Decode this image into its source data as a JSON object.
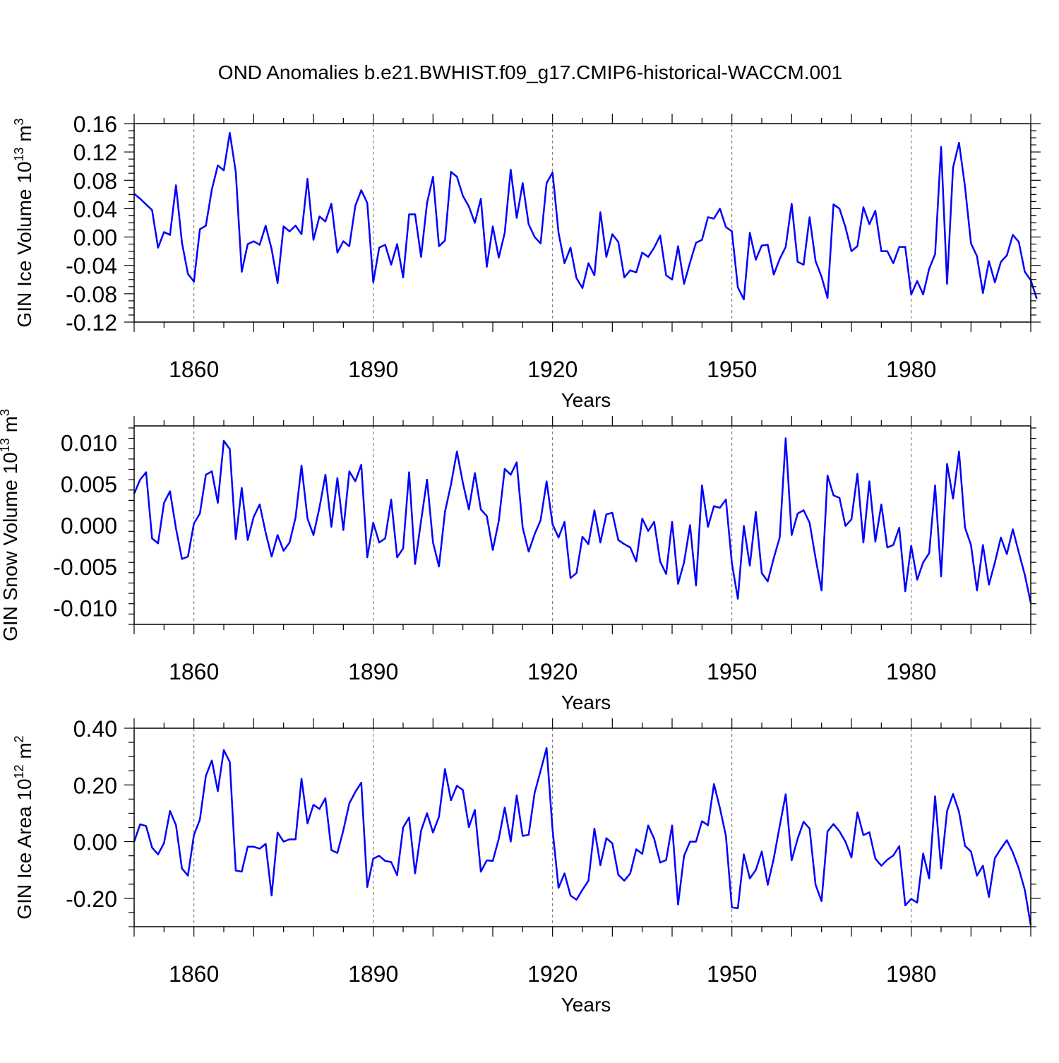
{
  "title": "OND Anomalies b.e21.BWHIST.f09_g17.CMIP6-historical-WACCM.001",
  "line_color": "#0000ff",
  "chart_data": [
    {
      "type": "line",
      "ylabel": {
        "main": "GIN Ice Volume 10",
        "exp": "13",
        "unit": " m",
        "unit_exp": "3"
      },
      "xlabel": "Years",
      "xlim": [
        1850,
        2000
      ],
      "ylim": [
        -0.12,
        0.16
      ],
      "xticks": [
        1860,
        1890,
        1920,
        1950,
        1980
      ],
      "yticks": [
        -0.12,
        -0.08,
        -0.04,
        0.0,
        0.04,
        0.08,
        0.12,
        0.16
      ],
      "ytick_labels": [
        "-0.12",
        "-0.08",
        "-0.04",
        "0.00",
        "0.04",
        "0.08",
        "0.12",
        "0.16"
      ],
      "x_start": 1850,
      "series": [
        {
          "name": "GIN Ice Volume",
          "values": [
            0.061,
            0.054,
            0.046,
            0.038,
            -0.015,
            0.007,
            0.003,
            0.073,
            -0.008,
            -0.052,
            -0.063,
            0.011,
            0.016,
            0.067,
            0.101,
            0.094,
            0.147,
            0.092,
            -0.049,
            -0.01,
            -0.006,
            -0.011,
            0.016,
            -0.017,
            -0.065,
            0.015,
            0.008,
            0.016,
            0.004,
            0.082,
            -0.004,
            0.029,
            0.022,
            0.047,
            -0.022,
            -0.006,
            -0.013,
            0.044,
            0.066,
            0.048,
            -0.064,
            -0.015,
            -0.011,
            -0.039,
            -0.01,
            -0.057,
            0.032,
            0.032,
            -0.028,
            0.048,
            0.085,
            -0.013,
            -0.005,
            0.092,
            0.085,
            0.058,
            0.043,
            0.02,
            0.054,
            -0.042,
            0.015,
            -0.029,
            0.006,
            0.095,
            0.027,
            0.076,
            0.018,
            0.0,
            -0.009,
            0.076,
            0.091,
            0.006,
            -0.037,
            -0.015,
            -0.058,
            -0.072,
            -0.037,
            -0.054,
            0.035,
            -0.028,
            0.004,
            -0.007,
            -0.057,
            -0.047,
            -0.05,
            -0.022,
            -0.028,
            -0.015,
            0.002,
            -0.054,
            -0.06,
            -0.013,
            -0.066,
            -0.036,
            -0.008,
            -0.004,
            0.028,
            0.026,
            0.04,
            0.014,
            0.008,
            -0.071,
            -0.088,
            0.006,
            -0.032,
            -0.012,
            -0.011,
            -0.053,
            -0.031,
            -0.014,
            0.047,
            -0.035,
            -0.039,
            0.028,
            -0.034,
            -0.056,
            -0.086,
            0.046,
            0.04,
            0.014,
            -0.02,
            -0.013,
            0.042,
            0.018,
            0.037,
            -0.02,
            -0.02,
            -0.037,
            -0.014,
            -0.014,
            -0.081,
            -0.062,
            -0.081,
            -0.045,
            -0.024,
            0.127,
            -0.066,
            0.098,
            0.133,
            0.071,
            -0.009,
            -0.027,
            -0.079,
            -0.034,
            -0.064,
            -0.035,
            -0.026,
            0.003,
            -0.007,
            -0.049,
            -0.061,
            -0.087
          ]
        }
      ]
    },
    {
      "type": "line",
      "ylabel": {
        "main": "GIN Snow Volume 10",
        "exp": "13",
        "unit": " m",
        "unit_exp": "3"
      },
      "xlabel": "Years",
      "xlim": [
        1850,
        2000
      ],
      "ylim": [
        -0.012,
        0.012
      ],
      "xticks": [
        1860,
        1890,
        1920,
        1950,
        1980
      ],
      "yticks": [
        -0.01,
        -0.005,
        0.0,
        0.005,
        0.01
      ],
      "ytick_labels": [
        "-0.010",
        "-0.005",
        "0.000",
        "0.005",
        "0.010"
      ],
      "x_start": 1850,
      "series": [
        {
          "name": "GIN Snow Volume",
          "values": [
            0.0038,
            0.0055,
            0.0064,
            -0.0016,
            -0.0022,
            0.0027,
            0.0041,
            -0.0004,
            -0.0041,
            -0.0038,
            0.0002,
            0.0014,
            0.0061,
            0.0065,
            0.0027,
            0.0102,
            0.0092,
            -0.0017,
            0.0045,
            -0.0018,
            0.001,
            0.0025,
            -0.0009,
            -0.0038,
            -0.0012,
            -0.0031,
            -0.0021,
            0.0009,
            0.0072,
            0.0008,
            -0.0012,
            0.0021,
            0.0061,
            -0.0002,
            0.0057,
            -0.0006,
            0.0065,
            0.0053,
            0.0073,
            -0.0039,
            0.0003,
            -0.0021,
            -0.0016,
            0.0031,
            -0.0039,
            -0.0028,
            0.0064,
            -0.0047,
            0.0005,
            0.0055,
            -0.0021,
            -0.005,
            0.0016,
            0.0049,
            0.0089,
            0.0051,
            0.0019,
            0.0063,
            0.0019,
            0.0011,
            -0.003,
            0.0005,
            0.0068,
            0.0061,
            0.0076,
            -0.0003,
            -0.0032,
            -0.0011,
            0.0006,
            0.0053,
            0.0001,
            -0.0015,
            0.0004,
            -0.0064,
            -0.0058,
            -0.0014,
            -0.0023,
            0.0018,
            -0.0021,
            0.0013,
            0.0015,
            -0.0018,
            -0.0023,
            -0.0027,
            -0.0044,
            0.0008,
            -0.0007,
            0.0004,
            -0.0044,
            -0.0059,
            0.0004,
            -0.0071,
            -0.0045,
            0.0,
            -0.0073,
            0.0048,
            -0.0002,
            0.0023,
            0.0021,
            0.0031,
            -0.0046,
            -0.0089,
            -0.0001,
            -0.0049,
            0.0016,
            -0.0058,
            -0.0068,
            -0.004,
            -0.0015,
            0.0105,
            -0.0012,
            0.0014,
            0.0018,
            0.0003,
            -0.004,
            -0.0079,
            0.006,
            0.0036,
            0.0033,
            -0.0001,
            0.0007,
            0.0062,
            -0.0021,
            0.0053,
            -0.002,
            0.0025,
            -0.0027,
            -0.0024,
            -0.0003,
            -0.008,
            -0.0025,
            -0.0066,
            -0.0045,
            -0.0034,
            0.0048,
            -0.0062,
            0.0074,
            0.0032,
            0.0089,
            -0.0003,
            -0.0024,
            -0.0079,
            -0.0024,
            -0.0072,
            -0.0045,
            -0.0015,
            -0.0035,
            -0.0005,
            -0.0033,
            -0.006,
            -0.0094
          ]
        }
      ]
    },
    {
      "type": "line",
      "ylabel": {
        "main": "GIN Ice Area 10",
        "exp": "12",
        "unit": " m",
        "unit_exp": "2"
      },
      "xlabel": "Years",
      "xlim": [
        1850,
        2000
      ],
      "ylim": [
        -0.3,
        0.4
      ],
      "xticks": [
        1860,
        1890,
        1920,
        1950,
        1980
      ],
      "yticks": [
        -0.2,
        0.0,
        0.2,
        0.4
      ],
      "ytick_labels": [
        "-0.20",
        "0.00",
        "0.20",
        "0.40"
      ],
      "x_start": 1850,
      "series": [
        {
          "name": "GIN Ice Area",
          "values": [
            0.0,
            0.061,
            0.055,
            -0.021,
            -0.045,
            -0.005,
            0.108,
            0.058,
            -0.095,
            -0.12,
            0.023,
            0.078,
            0.232,
            0.286,
            0.178,
            0.323,
            0.281,
            -0.102,
            -0.106,
            -0.018,
            -0.018,
            -0.025,
            -0.008,
            -0.19,
            0.032,
            0.0,
            0.008,
            0.008,
            0.222,
            0.064,
            0.13,
            0.115,
            0.153,
            -0.03,
            -0.04,
            0.04,
            0.135,
            0.175,
            0.208,
            -0.16,
            -0.06,
            -0.05,
            -0.068,
            -0.072,
            -0.118,
            0.05,
            0.085,
            -0.112,
            0.038,
            0.1,
            0.032,
            0.088,
            0.256,
            0.146,
            0.197,
            0.182,
            0.051,
            0.112,
            -0.106,
            -0.066,
            -0.068,
            0.01,
            0.12,
            0.0,
            0.163,
            0.02,
            0.024,
            0.172,
            0.25,
            0.33,
            0.042,
            -0.163,
            -0.112,
            -0.19,
            -0.205,
            -0.17,
            -0.138,
            0.046,
            -0.083,
            0.012,
            -0.006,
            -0.117,
            -0.138,
            -0.112,
            -0.027,
            -0.043,
            0.057,
            0.01,
            -0.074,
            -0.065,
            0.057,
            -0.222,
            -0.05,
            0.0,
            0.0,
            0.072,
            0.058,
            0.203,
            0.118,
            0.02,
            -0.232,
            -0.235,
            -0.045,
            -0.13,
            -0.1,
            -0.035,
            -0.152,
            -0.06,
            0.055,
            0.167,
            -0.066,
            0.01,
            0.07,
            0.046,
            -0.152,
            -0.21,
            0.036,
            0.062,
            0.036,
            0.0,
            -0.056,
            0.103,
            0.023,
            0.033,
            -0.06,
            -0.085,
            -0.064,
            -0.049,
            -0.016,
            -0.225,
            -0.202,
            -0.215,
            -0.042,
            -0.13,
            0.16,
            -0.095,
            0.108,
            0.168,
            0.105,
            -0.015,
            -0.035,
            -0.12,
            -0.085,
            -0.195,
            -0.058,
            -0.025,
            0.005,
            -0.038,
            -0.095,
            -0.17,
            -0.295
          ]
        }
      ]
    }
  ]
}
